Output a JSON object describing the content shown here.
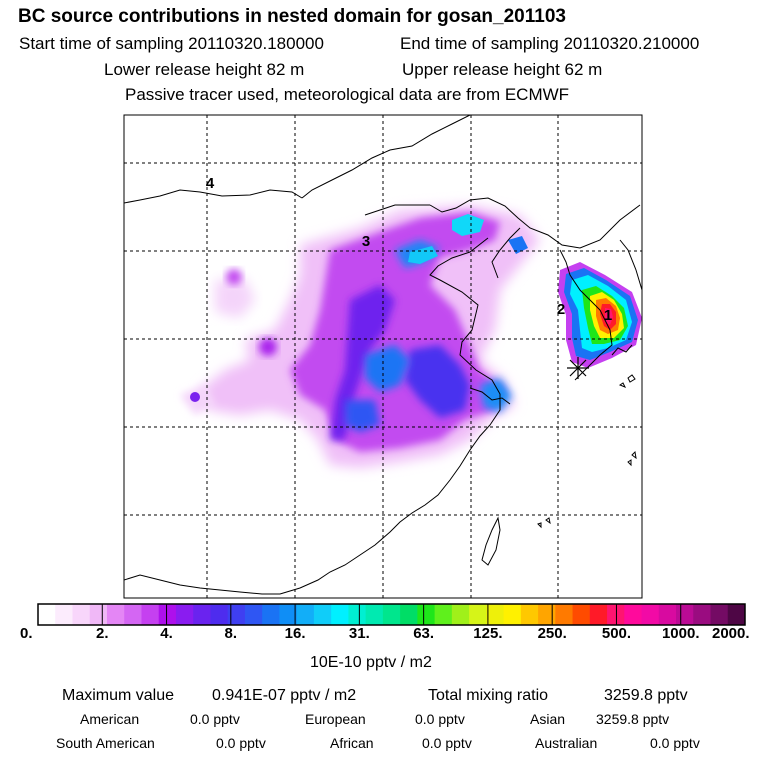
{
  "header": {
    "title": "BC  source contributions in nested domain for gosan_201103",
    "start_label": "Start time of sampling 20110320.180000",
    "end_label": "End time of sampling 20110320.210000",
    "lower_label": "Lower release height   82 m",
    "upper_label": "Upper release height   62 m",
    "info": "Passive tracer used, meteorological data are from ECMWF"
  },
  "chart_data": {
    "type": "heatmap",
    "title": "BC  source contributions in nested domain for gosan_201103",
    "region_labels": [
      "1",
      "2",
      "3",
      "4"
    ],
    "colorbar": {
      "ticks": [
        "0.",
        "2.",
        "4.",
        "8.",
        "16.",
        "31.",
        "63.",
        "125.",
        "250.",
        "500.",
        "1000.",
        "2000."
      ],
      "colors": [
        "#ffffff",
        "#fcecfd",
        "#f8d6fb",
        "#f0b8f7",
        "#e486f5",
        "#d466f3",
        "#c540f0",
        "#ae10ec",
        "#8a1cf0",
        "#6a23ef",
        "#4e2cee",
        "#3f3ff1",
        "#2f56f3",
        "#1a73f4",
        "#0f8ef6",
        "#12aef8",
        "#10cdf9",
        "#00f0ff",
        "#00efd2",
        "#00eab1",
        "#00e68d",
        "#00dd66",
        "#1ee61a",
        "#5ff01c",
        "#a0f01a",
        "#d6f418",
        "#eef00a",
        "#fff100",
        "#ffc800",
        "#ffa500",
        "#ff7a00",
        "#ff4b00",
        "#ff1a28",
        "#ff1470",
        "#ff0a9c",
        "#f20aa6",
        "#d80aa0",
        "#bb0b95",
        "#9a0c80",
        "#740b64",
        "#4e0645"
      ],
      "unit": "10E-10 pptv / m2"
    },
    "receptor_marker": "gosan-receptor"
  },
  "footer": {
    "max_label": "Maximum value",
    "max_value": "0.941E-07 pptv / m2",
    "total_label": "Total mixing ratio",
    "total_value": "3259.8 pptv",
    "regions": [
      {
        "name": "American",
        "value": "0.0 pptv"
      },
      {
        "name": "European",
        "value": "0.0 pptv"
      },
      {
        "name": "Asian",
        "value": "3259.8 pptv"
      },
      {
        "name": "South American",
        "value": "0.0 pptv"
      },
      {
        "name": "African",
        "value": "0.0 pptv"
      },
      {
        "name": "Australian",
        "value": "0.0 pptv"
      }
    ]
  }
}
